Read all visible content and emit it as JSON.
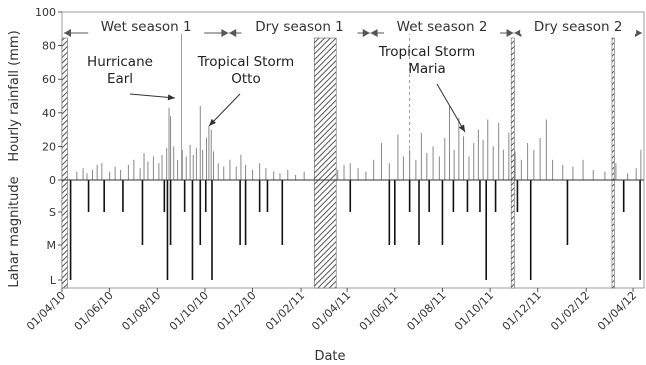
{
  "chart_data": {
    "type": "bar",
    "xlabel": "Date",
    "x_ticks": [
      "01/04/10",
      "01/06/10",
      "01/08/10",
      "01/10/10",
      "01/12/10",
      "01/02/11",
      "01/04/11",
      "01/06/11",
      "01/08/11",
      "01/10/11",
      "01/12/11",
      "01/02/12",
      "01/04/12"
    ],
    "x_range": [
      "2010-04-01",
      "2012-04-15"
    ],
    "top_panel": {
      "ylabel": "Hourly rainfall (mm)",
      "ylim": [
        0,
        100
      ],
      "yticks": [
        "0",
        "20",
        "40",
        "60",
        "80",
        "100"
      ],
      "rainfall": [
        {
          "date": "2010-04-20",
          "value": 5
        },
        {
          "date": "2010-04-28",
          "value": 7
        },
        {
          "date": "2010-05-03",
          "value": 4
        },
        {
          "date": "2010-05-10",
          "value": 6
        },
        {
          "date": "2010-05-16",
          "value": 9
        },
        {
          "date": "2010-05-22",
          "value": 10
        },
        {
          "date": "2010-06-01",
          "value": 5
        },
        {
          "date": "2010-06-08",
          "value": 8
        },
        {
          "date": "2010-06-15",
          "value": 6
        },
        {
          "date": "2010-06-25",
          "value": 9
        },
        {
          "date": "2010-07-02",
          "value": 12
        },
        {
          "date": "2010-07-10",
          "value": 7
        },
        {
          "date": "2010-07-15",
          "value": 16
        },
        {
          "date": "2010-07-20",
          "value": 11
        },
        {
          "date": "2010-07-27",
          "value": 14
        },
        {
          "date": "2010-08-03",
          "value": 10
        },
        {
          "date": "2010-08-07",
          "value": 15
        },
        {
          "date": "2010-08-13",
          "value": 19
        },
        {
          "date": "2010-08-16",
          "value": 43
        },
        {
          "date": "2010-08-18",
          "value": 38
        },
        {
          "date": "2010-08-22",
          "value": 20
        },
        {
          "date": "2010-08-27",
          "value": 12
        },
        {
          "date": "2010-09-02",
          "value": 18
        },
        {
          "date": "2010-09-07",
          "value": 14
        },
        {
          "date": "2010-09-12",
          "value": 21
        },
        {
          "date": "2010-09-16",
          "value": 15
        },
        {
          "date": "2010-09-20",
          "value": 19
        },
        {
          "date": "2010-09-25",
          "value": 44
        },
        {
          "date": "2010-09-28",
          "value": 18
        },
        {
          "date": "2010-10-03",
          "value": 25
        },
        {
          "date": "2010-10-06",
          "value": 32
        },
        {
          "date": "2010-10-09",
          "value": 30
        },
        {
          "date": "2010-10-12",
          "value": 17
        },
        {
          "date": "2010-10-18",
          "value": 10
        },
        {
          "date": "2010-10-25",
          "value": 8
        },
        {
          "date": "2010-11-02",
          "value": 12
        },
        {
          "date": "2010-11-10",
          "value": 8
        },
        {
          "date": "2010-11-16",
          "value": 15
        },
        {
          "date": "2010-11-22",
          "value": 9
        },
        {
          "date": "2010-12-01",
          "value": 6
        },
        {
          "date": "2010-12-10",
          "value": 10
        },
        {
          "date": "2010-12-18",
          "value": 7
        },
        {
          "date": "2010-12-28",
          "value": 5
        },
        {
          "date": "2011-01-05",
          "value": 4
        },
        {
          "date": "2011-01-15",
          "value": 6
        },
        {
          "date": "2011-01-25",
          "value": 3
        },
        {
          "date": "2011-02-05",
          "value": 5
        },
        {
          "date": "2011-03-20",
          "value": 6
        },
        {
          "date": "2011-03-28",
          "value": 9
        },
        {
          "date": "2011-04-05",
          "value": 10
        },
        {
          "date": "2011-04-15",
          "value": 7
        },
        {
          "date": "2011-04-25",
          "value": 5
        },
        {
          "date": "2011-05-05",
          "value": 12
        },
        {
          "date": "2011-05-15",
          "value": 22
        },
        {
          "date": "2011-05-25",
          "value": 10
        },
        {
          "date": "2011-06-05",
          "value": 27
        },
        {
          "date": "2011-06-12",
          "value": 14
        },
        {
          "date": "2011-06-20",
          "value": 18
        },
        {
          "date": "2011-06-28",
          "value": 12
        },
        {
          "date": "2011-07-05",
          "value": 28
        },
        {
          "date": "2011-07-12",
          "value": 16
        },
        {
          "date": "2011-07-20",
          "value": 20
        },
        {
          "date": "2011-07-28",
          "value": 14
        },
        {
          "date": "2011-08-04",
          "value": 25
        },
        {
          "date": "2011-08-10",
          "value": 44
        },
        {
          "date": "2011-08-16",
          "value": 18
        },
        {
          "date": "2011-08-22",
          "value": 37
        },
        {
          "date": "2011-08-28",
          "value": 26
        },
        {
          "date": "2011-09-04",
          "value": 14
        },
        {
          "date": "2011-09-10",
          "value": 22
        },
        {
          "date": "2011-09-16",
          "value": 30
        },
        {
          "date": "2011-09-22",
          "value": 24
        },
        {
          "date": "2011-09-28",
          "value": 36
        },
        {
          "date": "2011-10-05",
          "value": 20
        },
        {
          "date": "2011-10-12",
          "value": 34
        },
        {
          "date": "2011-10-18",
          "value": 18
        },
        {
          "date": "2011-10-25",
          "value": 28
        },
        {
          "date": "2011-11-02",
          "value": 17
        },
        {
          "date": "2011-11-10",
          "value": 12
        },
        {
          "date": "2011-11-18",
          "value": 22
        },
        {
          "date": "2011-11-26",
          "value": 18
        },
        {
          "date": "2011-12-04",
          "value": 25
        },
        {
          "date": "2011-12-12",
          "value": 36
        },
        {
          "date": "2011-12-20",
          "value": 12
        },
        {
          "date": "2012-01-02",
          "value": 9
        },
        {
          "date": "2012-01-15",
          "value": 8
        },
        {
          "date": "2012-01-28",
          "value": 12
        },
        {
          "date": "2012-02-10",
          "value": 6
        },
        {
          "date": "2012-02-25",
          "value": 5
        },
        {
          "date": "2012-03-10",
          "value": 10
        },
        {
          "date": "2012-03-25",
          "value": 4
        },
        {
          "date": "2012-04-05",
          "value": 7
        },
        {
          "date": "2012-04-11",
          "value": 18
        }
      ],
      "season_labels": [
        "Wet season 1",
        "Dry season 1",
        "Wet season 2",
        "Dry season 2"
      ],
      "seasons": [
        {
          "label_index": 0,
          "start": "2010-04-01",
          "end": "2010-10-31"
        },
        {
          "label_index": 1,
          "start": "2010-11-01",
          "end": "2011-04-30"
        },
        {
          "label_index": 2,
          "start": "2011-05-01",
          "end": "2011-10-31"
        },
        {
          "label_index": 3,
          "start": "2011-11-01",
          "end": "2012-04-15"
        }
      ],
      "annotations": [
        {
          "text": [
            "Hurricane",
            "Earl"
          ],
          "date": "2010-09-01"
        },
        {
          "text": [
            "Tropical Storm",
            "Otto"
          ],
          "date": "2010-10-06"
        },
        {
          "text": [
            "Tropical Storm",
            "Maria"
          ],
          "date": "2011-09-10"
        }
      ],
      "data_gaps": [
        {
          "start": "2010-04-01",
          "end": "2010-04-08",
          "style": "hatched"
        },
        {
          "start": "2011-02-18",
          "end": "2011-03-18",
          "style": "hatched"
        },
        {
          "start": "2011-10-28",
          "end": "2011-11-01",
          "style": "hatched"
        },
        {
          "start": "2012-03-05",
          "end": "2012-03-08",
          "style": "hatched"
        }
      ],
      "event_markers": [
        {
          "date": "2010-09-01",
          "style": "solid"
        },
        {
          "date": "2011-06-20",
          "style": "dashed"
        }
      ]
    },
    "bottom_panel": {
      "ylabel": "Lahar magnitude",
      "yticks": [
        "0",
        "S",
        "M",
        "L"
      ],
      "events": [
        {
          "date": "2010-04-12",
          "magnitude": "L"
        },
        {
          "date": "2010-05-05",
          "magnitude": "S"
        },
        {
          "date": "2010-05-25",
          "magnitude": "S"
        },
        {
          "date": "2010-06-18",
          "magnitude": "S"
        },
        {
          "date": "2010-07-13",
          "magnitude": "M"
        },
        {
          "date": "2010-08-10",
          "magnitude": "S"
        },
        {
          "date": "2010-08-14",
          "magnitude": "L"
        },
        {
          "date": "2010-08-18",
          "magnitude": "M"
        },
        {
          "date": "2010-09-05",
          "magnitude": "S"
        },
        {
          "date": "2010-09-15",
          "magnitude": "L"
        },
        {
          "date": "2010-09-25",
          "magnitude": "M"
        },
        {
          "date": "2010-10-02",
          "magnitude": "S"
        },
        {
          "date": "2010-10-10",
          "magnitude": "L"
        },
        {
          "date": "2010-11-15",
          "magnitude": "M"
        },
        {
          "date": "2010-11-22",
          "magnitude": "M"
        },
        {
          "date": "2010-12-10",
          "magnitude": "S"
        },
        {
          "date": "2010-12-20",
          "magnitude": "S"
        },
        {
          "date": "2011-01-08",
          "magnitude": "M"
        },
        {
          "date": "2011-04-05",
          "magnitude": "S"
        },
        {
          "date": "2011-05-25",
          "magnitude": "M"
        },
        {
          "date": "2011-06-01",
          "magnitude": "M"
        },
        {
          "date": "2011-06-20",
          "magnitude": "S"
        },
        {
          "date": "2011-07-02",
          "magnitude": "M"
        },
        {
          "date": "2011-07-15",
          "magnitude": "S"
        },
        {
          "date": "2011-08-01",
          "magnitude": "M"
        },
        {
          "date": "2011-08-15",
          "magnitude": "S"
        },
        {
          "date": "2011-09-02",
          "magnitude": "S"
        },
        {
          "date": "2011-09-18",
          "magnitude": "S"
        },
        {
          "date": "2011-09-26",
          "magnitude": "L"
        },
        {
          "date": "2011-10-08",
          "magnitude": "S"
        },
        {
          "date": "2011-11-05",
          "magnitude": "S"
        },
        {
          "date": "2011-11-22",
          "magnitude": "L"
        },
        {
          "date": "2012-01-08",
          "magnitude": "M"
        },
        {
          "date": "2012-03-20",
          "magnitude": "S"
        },
        {
          "date": "2012-04-10",
          "magnitude": "L"
        }
      ]
    }
  }
}
